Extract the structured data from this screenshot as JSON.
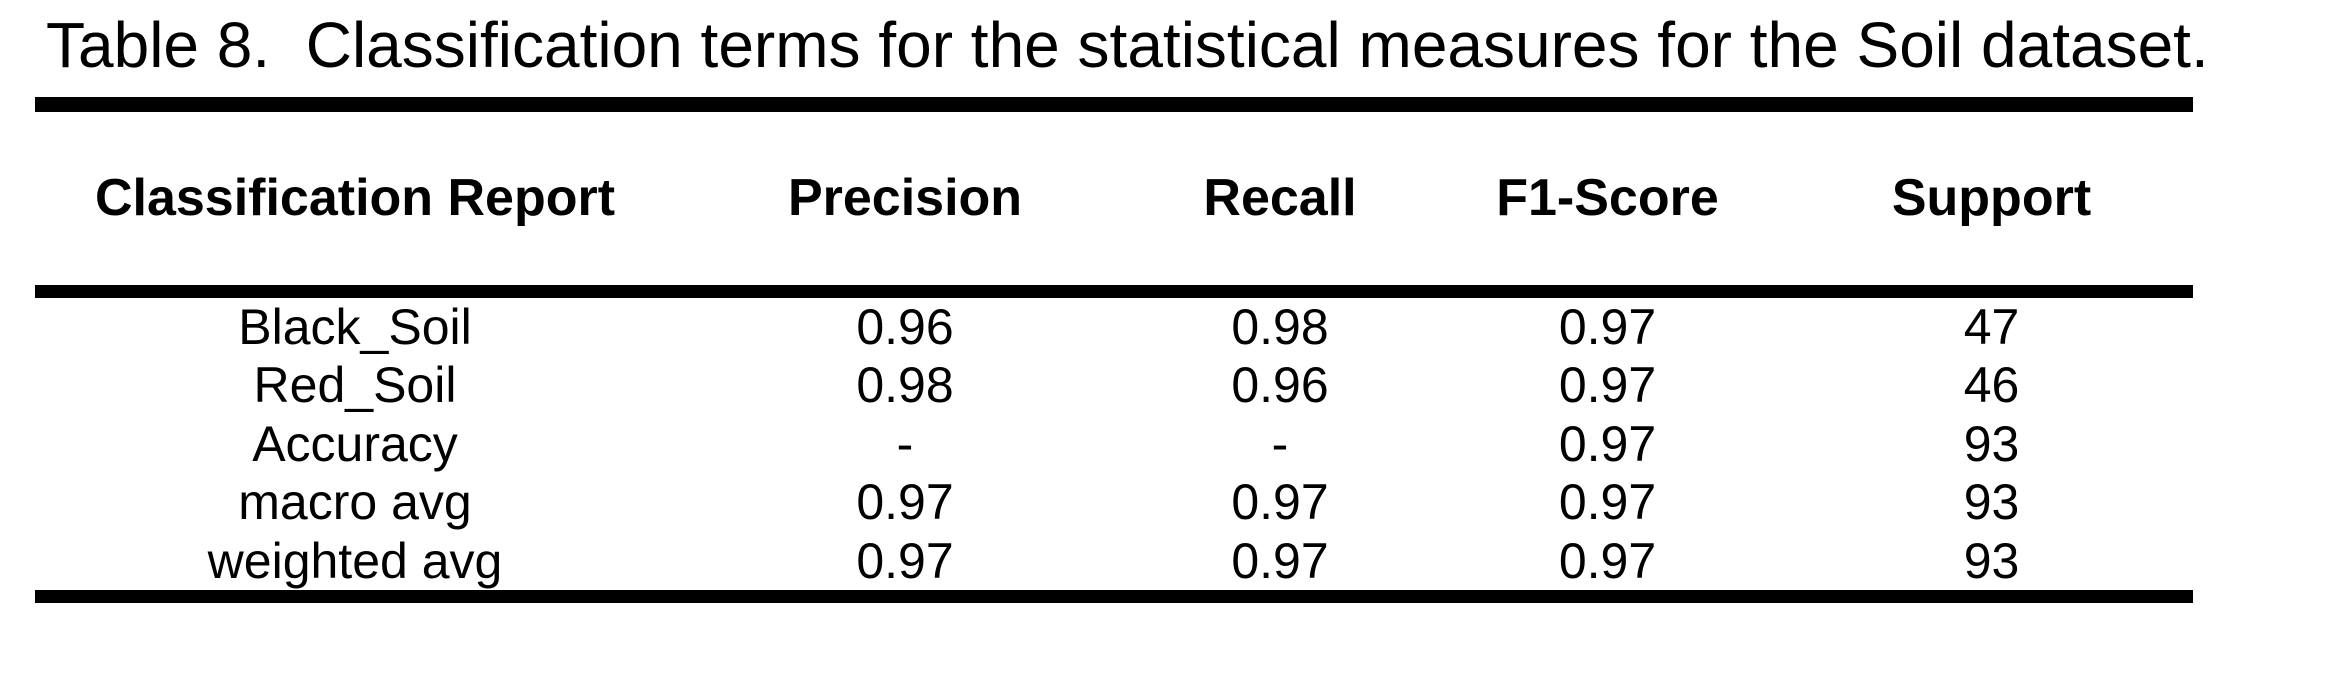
{
  "caption": "Table 8.  Classification terms for the statistical measures for the Soil dataset.",
  "colors": {
    "background": "#ffffff",
    "text": "#000000",
    "rule": "#000000"
  },
  "table": {
    "columns": [
      "Classification Report",
      "Precision",
      "Recall",
      "F1-Score",
      "Support"
    ],
    "rows": [
      {
        "label": "Black_Soil",
        "precision": "0.96",
        "recall": "0.98",
        "f1_score": "0.97",
        "support": "47"
      },
      {
        "label": "Red_Soil",
        "precision": "0.98",
        "recall": "0.96",
        "f1_score": "0.97",
        "support": "46"
      },
      {
        "label": "Accuracy",
        "precision": "-",
        "recall": "-",
        "f1_score": "0.97",
        "support": "93"
      },
      {
        "label": "macro avg",
        "precision": "0.97",
        "recall": "0.97",
        "f1_score": "0.97",
        "support": "93"
      },
      {
        "label": "weighted avg",
        "precision": "0.97",
        "recall": "0.97",
        "f1_score": "0.97",
        "support": "93"
      }
    ]
  }
}
